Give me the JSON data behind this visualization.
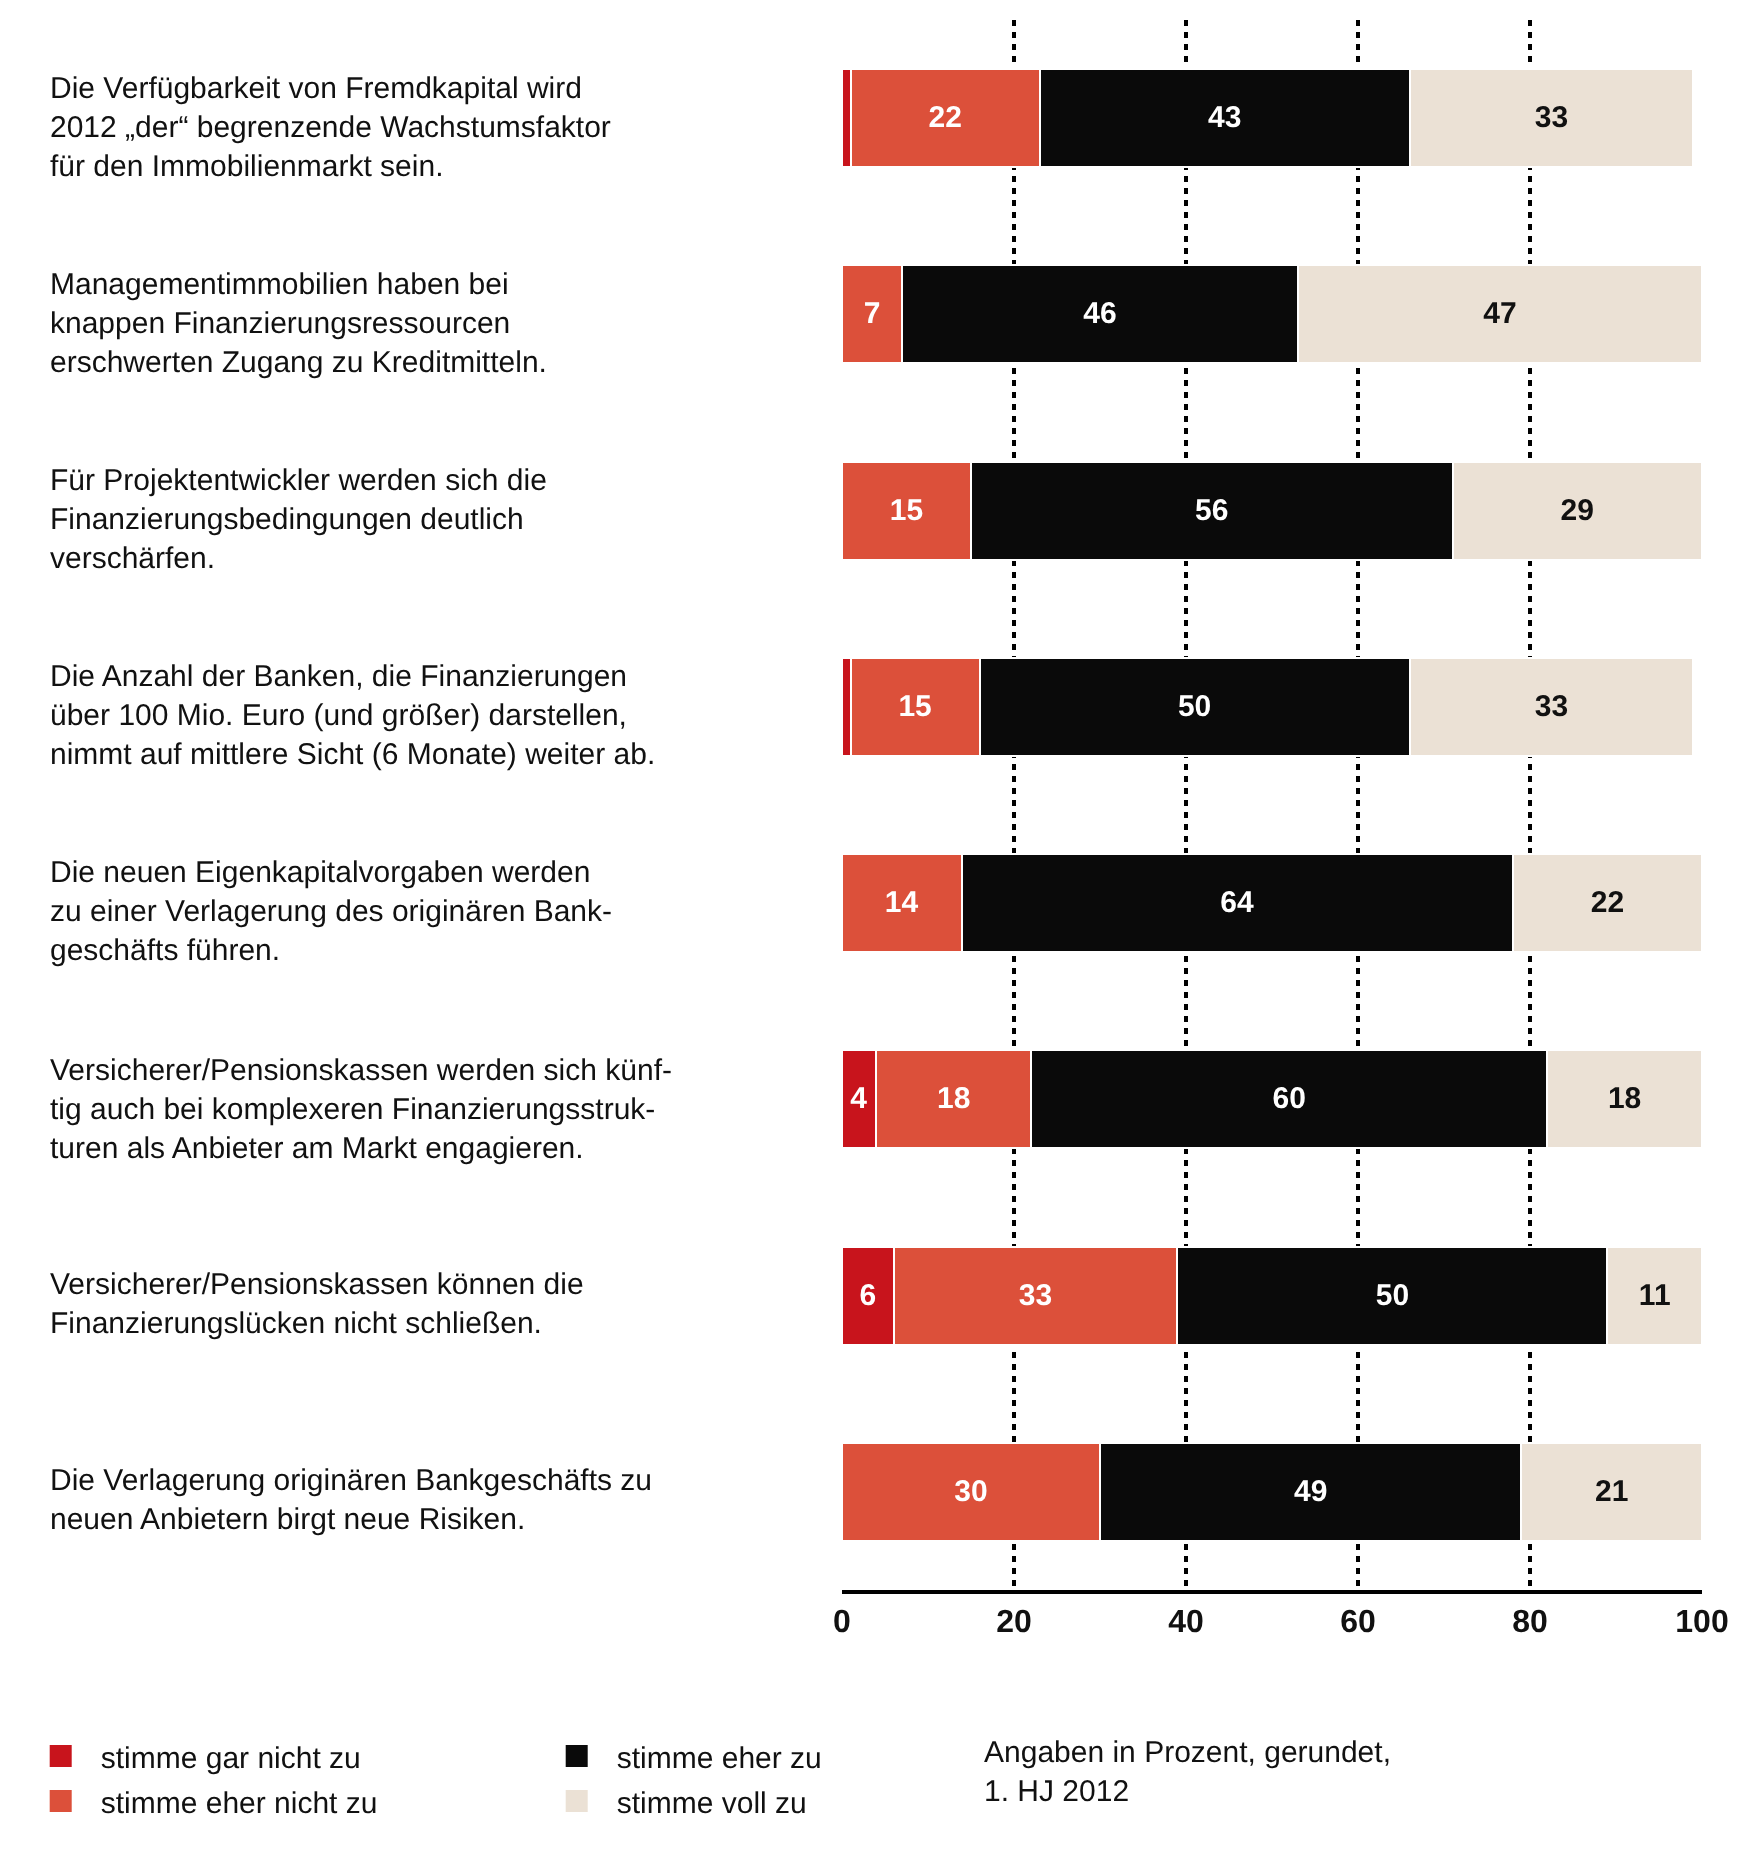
{
  "chart_data": {
    "type": "bar",
    "orientation": "horizontal",
    "stacked": true,
    "categories": [
      "Die Verfügbarkeit von Fremdkapital wird\n2012 „der“ begrenzende Wachstumsfaktor\nfür den Immobilienmarkt sein.",
      "Managementimmobilien haben bei\nknappen Finanzierungsressourcen\nerschwerten Zugang zu Kreditmitteln.",
      "Für Projektentwickler werden sich die\nFinanzierungsbedingungen deutlich\nverschärfen.",
      "Die Anzahl der Banken, die Finanzierungen\nüber 100 Mio. Euro (und größer) darstellen,\nnimmt auf mittlere Sicht (6 Monate) weiter ab.",
      "Die neuen Eigenkapitalvorgaben werden\nzu einer Verlagerung des originären Bank-\ngeschäfts führen.",
      "Versicherer/Pensionskassen werden sich künf-\ntig auch bei komplexeren Finanzierungsstruk-\nturen als Anbieter am Markt engagieren.",
      "Versicherer/Pensionskassen können die\nFinanzierungslücken nicht schließen.",
      "Die Verlagerung originären Bankgeschäfts zu\nneuen Anbietern birgt neue Risiken."
    ],
    "series": [
      {
        "name": "stimme gar nicht zu",
        "color": "#c8141c",
        "values": [
          1,
          null,
          null,
          1,
          null,
          4,
          6,
          null
        ],
        "value_labels": [
          null,
          null,
          null,
          null,
          null,
          "4",
          "6",
          null
        ]
      },
      {
        "name": "stimme eher nicht zu",
        "color": "#dc503a",
        "values": [
          22,
          7,
          15,
          15,
          14,
          18,
          33,
          30
        ],
        "value_labels": [
          "22",
          "7",
          "15",
          "15",
          "14",
          "18",
          "33",
          "30"
        ]
      },
      {
        "name": "stimme eher zu",
        "color": "#0a0a0a",
        "values": [
          43,
          46,
          56,
          50,
          64,
          60,
          50,
          49
        ],
        "value_labels": [
          "43",
          "46",
          "56",
          "50",
          "64",
          "60",
          "50",
          "49"
        ]
      },
      {
        "name": "stimme voll zu",
        "color": "#ebe1d5",
        "values": [
          33,
          47,
          29,
          33,
          22,
          18,
          11,
          21
        ],
        "value_labels": [
          "33",
          "47",
          "29",
          "33",
          "22",
          "18",
          "11",
          "21"
        ]
      }
    ],
    "xlim": [
      0,
      100
    ],
    "xticks": [
      0,
      20,
      40,
      60,
      80,
      100
    ],
    "grid": "x",
    "legend": "bottom left",
    "annotations": [
      "Angaben in Prozent, gerundet,\n1. HJ 2012"
    ]
  }
}
